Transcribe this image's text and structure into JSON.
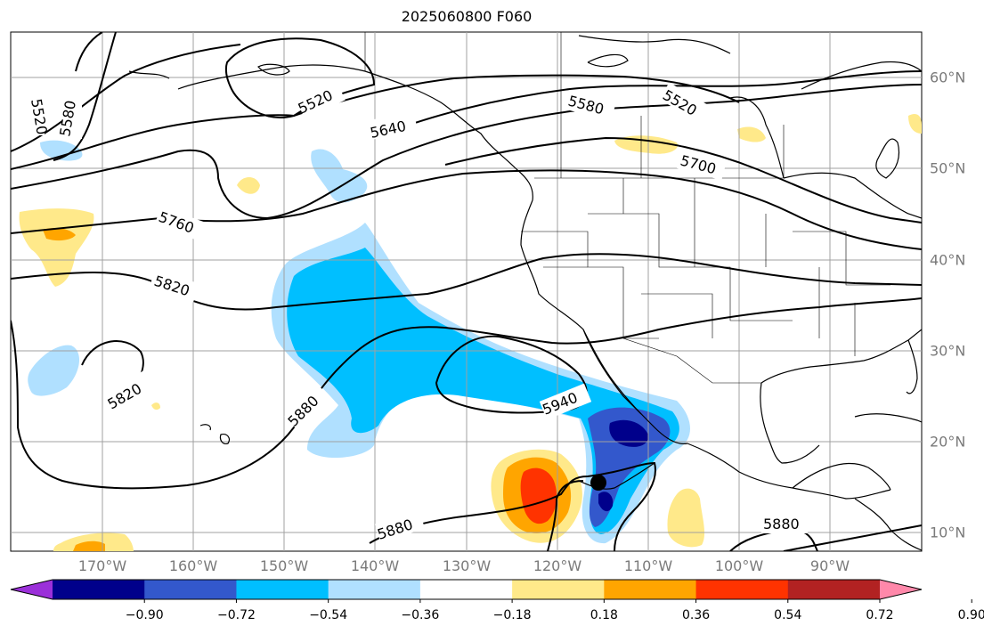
{
  "title": "2025060800 F060",
  "lon_labels": [
    "170°W",
    "160°W",
    "150°W",
    "140°W",
    "130°W",
    "120°W",
    "110°W",
    "100°W",
    "90°W"
  ],
  "lat_labels": [
    "60°N",
    "50°N",
    "40°N",
    "30°N",
    "20°N",
    "10°N"
  ],
  "contour_labels": [
    "5520",
    "5580",
    "5520",
    "5640",
    "5580",
    "5520",
    "5700",
    "5760",
    "5820",
    "5820",
    "5880",
    "5940",
    "5880",
    "5880"
  ],
  "colorbar": {
    "ticks": [
      "−0.90",
      "−0.72",
      "−0.54",
      "−0.36",
      "−0.18",
      "0.18",
      "0.36",
      "0.54",
      "0.72",
      "0.90"
    ],
    "colors": [
      "#9b30d9",
      "#00008b",
      "#3358cc",
      "#00bfff",
      "#b0e0ff",
      "#ffffff",
      "#ffe98a",
      "#ffa500",
      "#ff3300",
      "#b22222",
      "#ff88aa"
    ]
  },
  "colors": {
    "marker": "#000000",
    "gridline": "#a0a0a0",
    "tick_label": "#7a7a7a"
  }
}
